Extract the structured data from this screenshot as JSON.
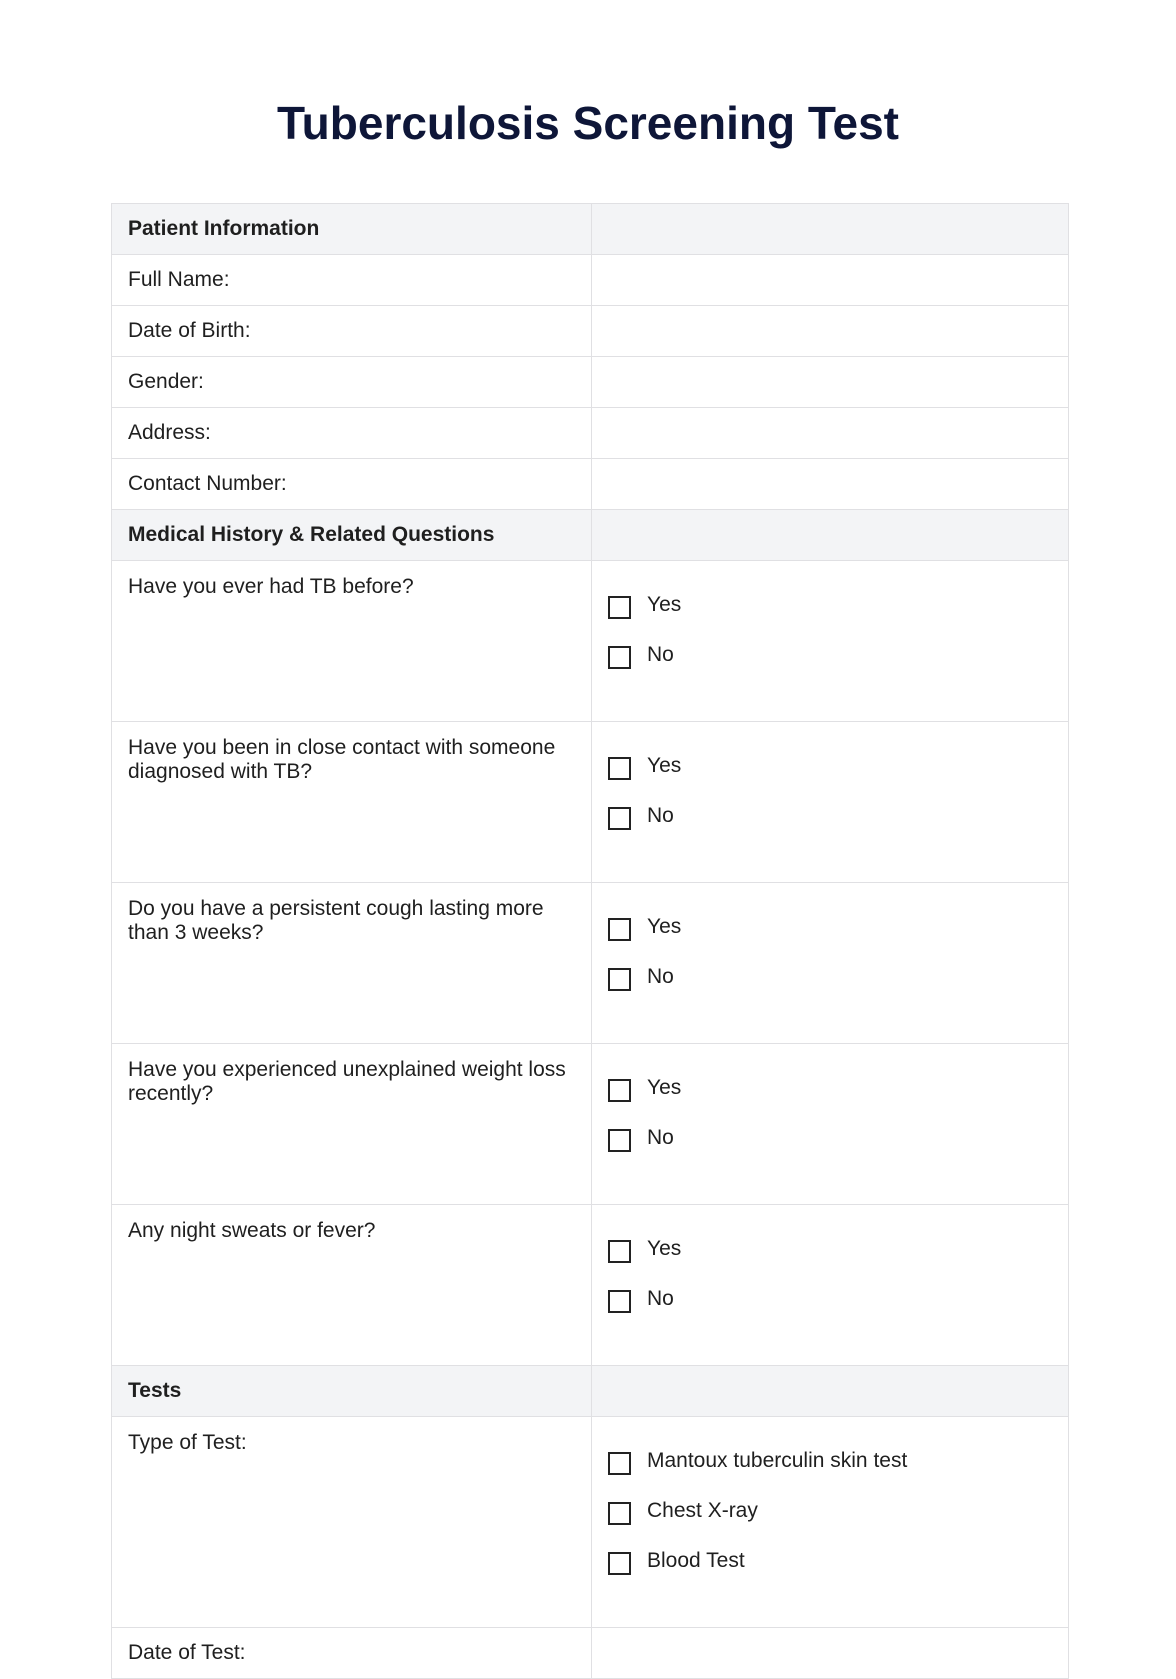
{
  "title": "Tuberculosis Screening Test",
  "sections": {
    "patient": {
      "heading": "Patient Information",
      "fields": [
        "Full Name:",
        "Date of Birth:",
        "Gender:",
        "Address:",
        "Contact Number:"
      ]
    },
    "medical": {
      "heading": "Medical History & Related Questions",
      "questions": [
        {
          "text": "Have you ever had TB before?",
          "options": [
            "Yes",
            "No"
          ]
        },
        {
          "text": "Have you been in close contact with someone diagnosed with TB?",
          "options": [
            "Yes",
            "No"
          ]
        },
        {
          "text": "Do you have a persistent cough lasting more than 3 weeks?",
          "options": [
            "Yes",
            "No"
          ]
        },
        {
          "text": "Have you experienced unexplained weight loss recently?",
          "options": [
            "Yes",
            "No"
          ]
        },
        {
          "text": "Any night sweats or fever?",
          "options": [
            "Yes",
            "No"
          ]
        }
      ]
    },
    "tests": {
      "heading": "Tests",
      "type_label": "Type of Test:",
      "type_options": [
        "Mantoux tuberculin skin test",
        "Chest X-ray",
        "Blood Test"
      ],
      "date_label": "Date of Test:"
    }
  },
  "colors": {
    "title": "#0e1638",
    "section_bg": "#f3f4f6",
    "border": "#e0e0e3"
  }
}
